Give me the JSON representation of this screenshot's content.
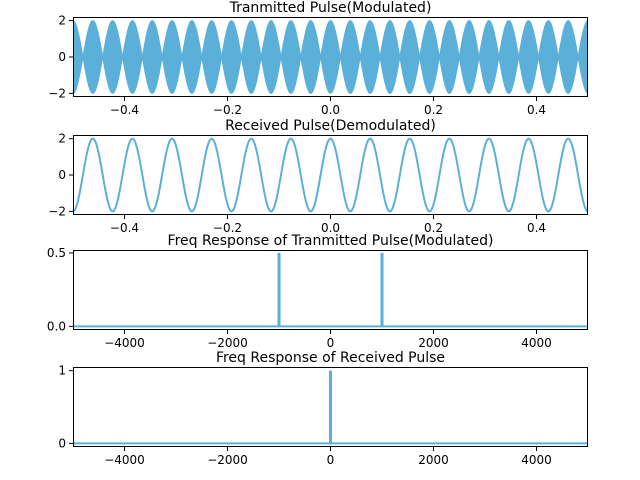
{
  "colors": {
    "line": "#5bb0d9",
    "axes": "#000000",
    "background": "#ffffff"
  },
  "chart_data": [
    {
      "type": "line",
      "title": "Tranmitted Pulse(Modulated)",
      "xlabel": "",
      "ylabel": "",
      "xlim": [
        -0.5,
        0.5
      ],
      "ylim": [
        -2.2,
        2.2
      ],
      "xticks": [
        -0.4,
        -0.2,
        0.0,
        0.2,
        0.4
      ],
      "xtick_labels": [
        "−0.4",
        "−0.2",
        "0.0",
        "0.2",
        "0.4"
      ],
      "yticks": [
        -2,
        0,
        2
      ],
      "ytick_labels": [
        "−2",
        "0",
        "2"
      ],
      "grid": false,
      "series": [
        {
          "kind": "am_waveform",
          "envelope_frequency": 13,
          "carrier_frequency": 1000,
          "amplitude": 2,
          "x_range": [
            -0.5,
            0.5
          ]
        }
      ]
    },
    {
      "type": "line",
      "title": "Received Pulse(Demodulated)",
      "xlabel": "",
      "ylabel": "",
      "xlim": [
        -0.5,
        0.5
      ],
      "ylim": [
        -2.2,
        2.2
      ],
      "xticks": [
        -0.4,
        -0.2,
        0.0,
        0.2,
        0.4
      ],
      "xtick_labels": [
        "−0.4",
        "−0.2",
        "0.0",
        "0.2",
        "0.4"
      ],
      "yticks": [
        -2,
        0,
        2
      ],
      "ytick_labels": [
        "−2",
        "0",
        "2"
      ],
      "grid": false,
      "series": [
        {
          "kind": "cosine",
          "frequency": 13,
          "amplitude": 2,
          "x_range": [
            -0.5,
            0.5
          ]
        }
      ]
    },
    {
      "type": "line",
      "title": "Freq Response of Tranmitted Pulse(Modulated)",
      "xlabel": "",
      "ylabel": "",
      "xlim": [
        -5000,
        5000
      ],
      "ylim": [
        -0.025,
        0.52
      ],
      "xticks": [
        -4000,
        -2000,
        0,
        2000,
        4000
      ],
      "xtick_labels": [
        "−4000",
        "−2000",
        "0",
        "2000",
        "4000"
      ],
      "yticks": [
        0.0,
        0.5
      ],
      "ytick_labels": [
        "0.0",
        "0.5"
      ],
      "grid": false,
      "series": [
        {
          "kind": "spectrum",
          "x_range": [
            -5000,
            5000
          ],
          "baseline": 0,
          "peaks": [
            {
              "x": -1000,
              "y": 0.5
            },
            {
              "x": 1000,
              "y": 0.5
            }
          ]
        }
      ]
    },
    {
      "type": "line",
      "title": "Freq Response of Received Pulse",
      "xlabel": "",
      "ylabel": "",
      "xlim": [
        -5000,
        5000
      ],
      "ylim": [
        -0.05,
        1.05
      ],
      "xticks": [
        -4000,
        -2000,
        0,
        2000,
        4000
      ],
      "xtick_labels": [
        "−4000",
        "−2000",
        "0",
        "2000",
        "4000"
      ],
      "yticks": [
        0,
        1
      ],
      "ytick_labels": [
        "0",
        "1"
      ],
      "grid": false,
      "series": [
        {
          "kind": "spectrum",
          "x_range": [
            -5000,
            5000
          ],
          "baseline": 0,
          "peaks": [
            {
              "x": 0,
              "y": 1
            }
          ]
        }
      ]
    }
  ]
}
